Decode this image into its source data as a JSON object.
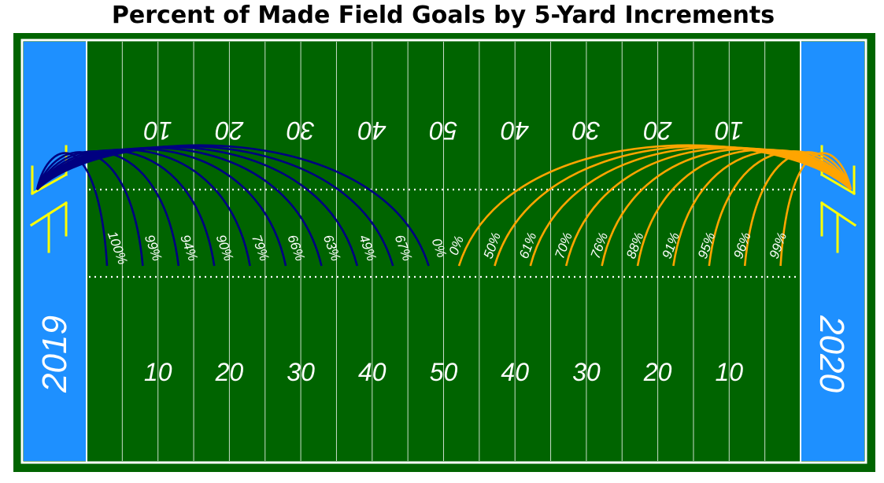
{
  "chart_data": {
    "type": "line",
    "title": "Percent of Made Field Goals by 5-Yard Increments",
    "yard_line_labels": [
      "10",
      "20",
      "30",
      "40",
      "50",
      "40",
      "30",
      "20",
      "10"
    ],
    "series": [
      {
        "name": "2019",
        "values": [
          "100%",
          "99%",
          "94%",
          "90%",
          "79%",
          "66%",
          "63%",
          "49%",
          "67%",
          "0%"
        ]
      },
      {
        "name": "2020",
        "values": [
          "0%",
          "50%",
          "61%",
          "70%",
          "76%",
          "88%",
          "91%",
          "95%",
          "96%",
          "99%"
        ]
      }
    ],
    "colors": {
      "field": "#006400",
      "border": "#ffffff",
      "endzone": "#1e90ff",
      "series_2019": "#000080",
      "series_2020": "#ffa500",
      "goalpost": "#ffff00"
    },
    "grid": true,
    "legend": "none"
  }
}
